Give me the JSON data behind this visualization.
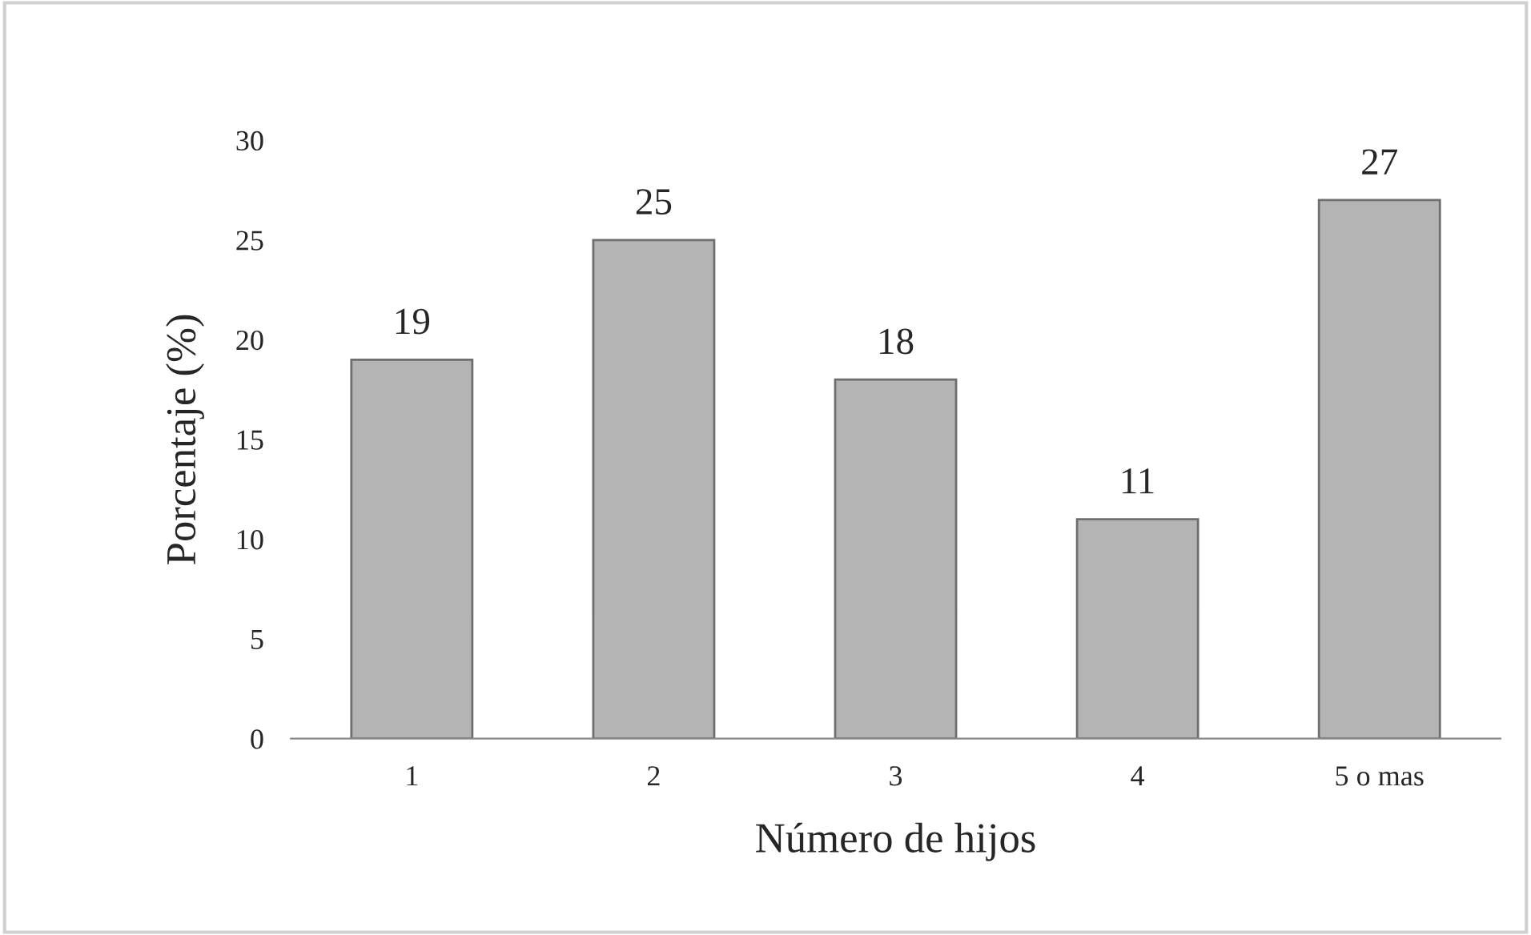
{
  "chart_data": {
    "type": "bar",
    "xlabel": "Número de hijos",
    "ylabel": "Porcentaje (%)",
    "categories": [
      "1",
      "2",
      "3",
      "4",
      "5 o mas"
    ],
    "values": [
      19,
      25,
      18,
      11,
      27
    ],
    "color": "#b4b4b4",
    "ylim": [
      0,
      30
    ],
    "yticks": [
      0,
      5,
      10,
      15,
      20,
      25,
      30
    ],
    "data_labels": true,
    "grid": false,
    "legend": false
  }
}
